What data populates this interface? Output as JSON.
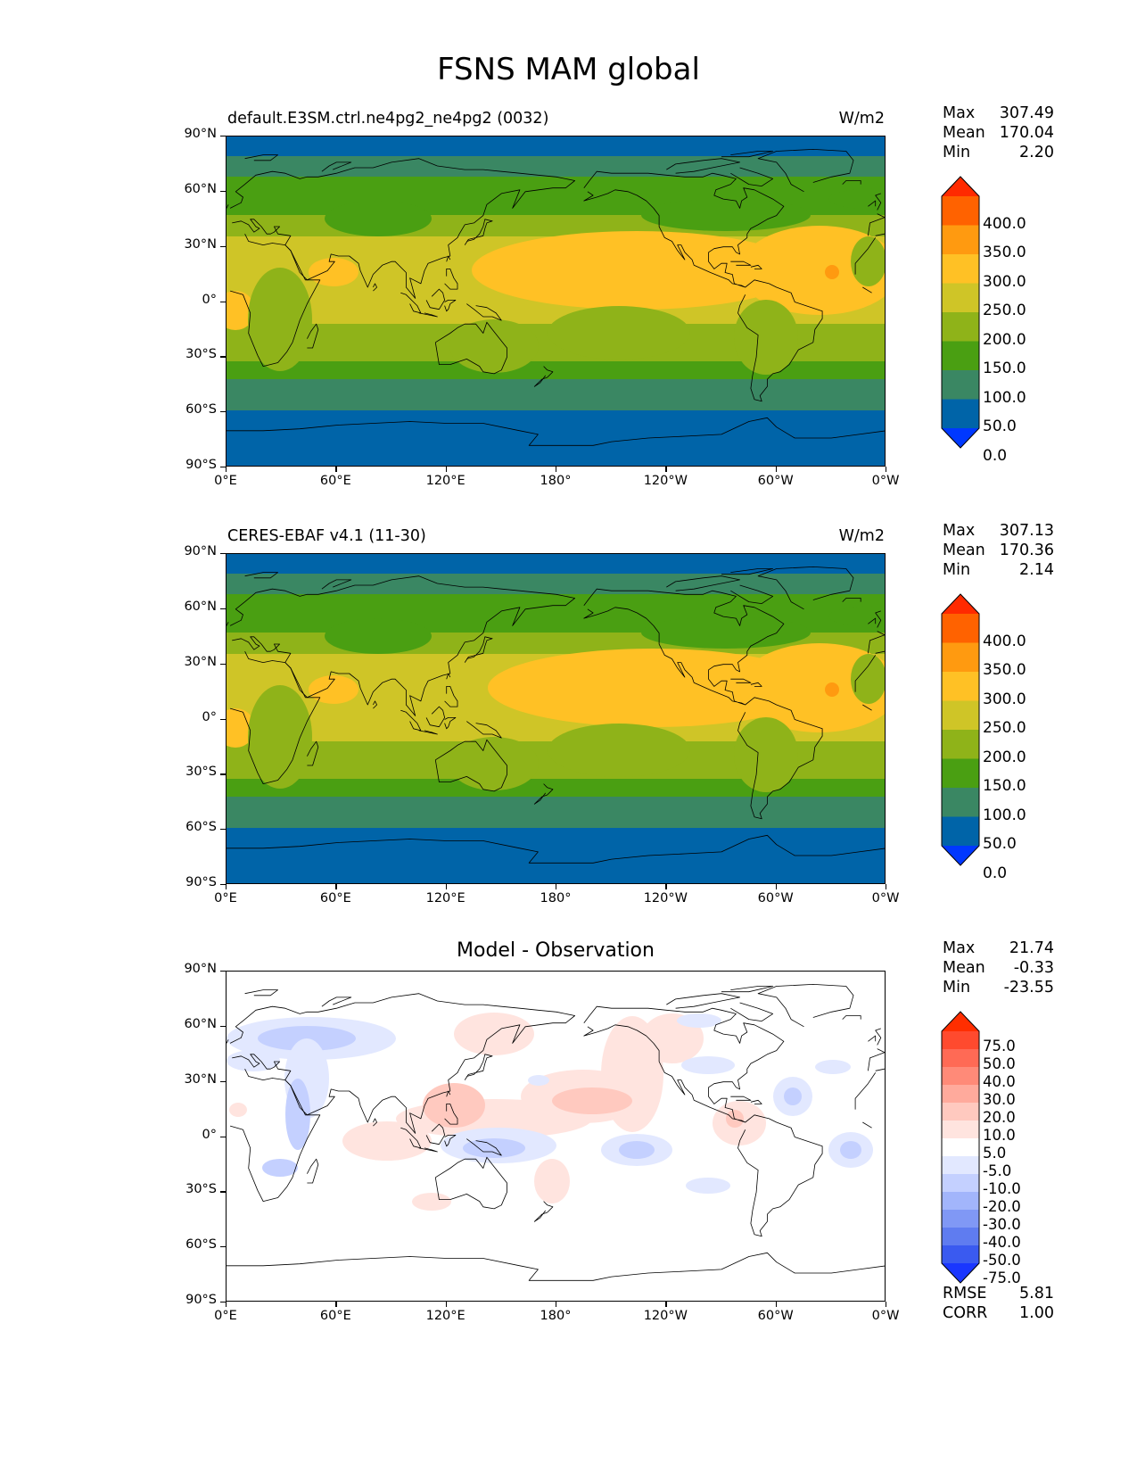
{
  "figure": {
    "title": "FSNS MAM global"
  },
  "panels": [
    {
      "subtitle": "default.E3SM.ctrl.ne4pg2_ne4pg2 (0032)",
      "units": "W/m2",
      "stats": {
        "max_label": "Max",
        "max": "307.49",
        "mean_label": "Mean",
        "mean": "170.04",
        "min_label": "Min",
        "min": "2.20"
      }
    },
    {
      "subtitle": "CERES-EBAF v4.1 (11-30)",
      "units": "W/m2",
      "stats": {
        "max_label": "Max",
        "max": "307.13",
        "mean_label": "Mean",
        "mean": "170.36",
        "min_label": "Min",
        "min": "2.14"
      }
    },
    {
      "subtitle": "Model - Observation",
      "units": "",
      "stats": {
        "max_label": "Max",
        "max": "21.74",
        "mean_label": "Mean",
        "mean": "-0.33",
        "min_label": "Min",
        "min": "-23.55"
      },
      "metrics": {
        "rmse_label": "RMSE",
        "rmse": "5.81",
        "corr_label": "CORR",
        "corr": "1.00"
      }
    }
  ],
  "axes": {
    "lat_ticks": [
      "90°N",
      "60°N",
      "30°N",
      "0°",
      "30°S",
      "60°S",
      "90°S"
    ],
    "lon_ticks": [
      "0°E",
      "60°E",
      "120°E",
      "180°",
      "120°W",
      "60°W",
      "0°W"
    ]
  },
  "colorbars": {
    "field": {
      "labels": [
        "400.0",
        "350.0",
        "300.0",
        "250.0",
        "200.0",
        "150.0",
        "100.0",
        "50.0",
        "0.0"
      ],
      "colors": [
        "#ff2a00",
        "#ff6200",
        "#ff9a10",
        "#ffc125",
        "#cfc527",
        "#8fb319",
        "#4a9f12",
        "#3a8763",
        "#0064a8",
        "#0038ff"
      ]
    },
    "diff": {
      "labels": [
        "75.0",
        "50.0",
        "40.0",
        "30.0",
        "20.0",
        "10.0",
        "5.0",
        "-5.0",
        "-10.0",
        "-20.0",
        "-30.0",
        "-40.0",
        "-50.0",
        "-75.0"
      ],
      "colors": [
        "#ff2e00",
        "#ff4a2e",
        "#ff6a55",
        "#ff8a78",
        "#ffaa9c",
        "#ffc9bf",
        "#ffe4df",
        "#ffffff",
        "#e2e8ff",
        "#c4d0ff",
        "#a2b5fb",
        "#8098f5",
        "#5f7cf0",
        "#3a5af0",
        "#1a36ff"
      ]
    }
  }
}
